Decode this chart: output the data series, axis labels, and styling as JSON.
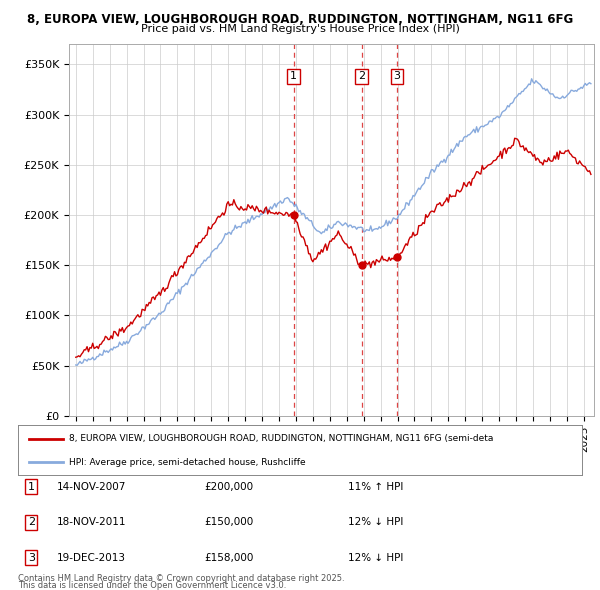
{
  "title1": "8, EUROPA VIEW, LOUGHBOROUGH ROAD, RUDDINGTON, NOTTINGHAM, NG11 6FG",
  "title2": "Price paid vs. HM Land Registry's House Price Index (HPI)",
  "legend_property": "8, EUROPA VIEW, LOUGHBOROUGH ROAD, RUDDINGTON, NOTTINGHAM, NG11 6FG (semi-deta",
  "legend_hpi": "HPI: Average price, semi-detached house, Rushcliffe",
  "transactions": [
    {
      "num": 1,
      "date": "14-NOV-2007",
      "price": 200000,
      "pct": "11%",
      "dir": "↑"
    },
    {
      "num": 2,
      "date": "18-NOV-2011",
      "price": 150000,
      "pct": "12%",
      "dir": "↓"
    },
    {
      "num": 3,
      "date": "19-DEC-2013",
      "price": 158000,
      "pct": "12%",
      "dir": "↓"
    }
  ],
  "vline_dates": [
    2007.87,
    2011.88,
    2013.96
  ],
  "transaction_prices": [
    200000,
    150000,
    158000
  ],
  "footnote1": "Contains HM Land Registry data © Crown copyright and database right 2025.",
  "footnote2": "This data is licensed under the Open Government Licence v3.0.",
  "property_color": "#cc0000",
  "hpi_color": "#88aadd",
  "vline_color": "#dd4444",
  "ylim": [
    0,
    370000
  ],
  "yticks": [
    0,
    50000,
    100000,
    150000,
    200000,
    250000,
    300000,
    350000
  ],
  "background_color": "#ffffff",
  "grid_color": "#cccccc"
}
